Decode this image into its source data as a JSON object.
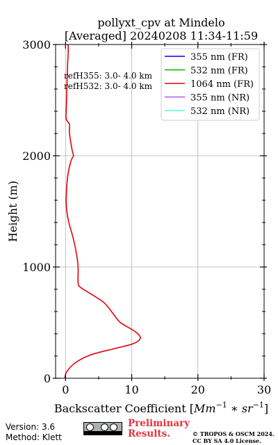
{
  "chart_data": {
    "type": "line",
    "title": "pollyxt_cpv at Mindelo",
    "subtitle": "[Averaged] 20240208 11:34-11:59",
    "xlabel_text": "Backscatter Coefficient [",
    "xlabel_math": "Mm",
    "xlabel_exp1": "−1",
    "xlabel_mid": " ∗ ",
    "xlabel_math2": "sr",
    "xlabel_exp2": "−1",
    "xlabel_close": "]",
    "ylabel": "Height (m)",
    "xlim": [
      -1.5,
      30
    ],
    "ylim": [
      0,
      3000
    ],
    "xticks": [
      "0",
      "10",
      "20",
      "30"
    ],
    "yticks": [
      "0",
      "1000",
      "2000",
      "3000"
    ],
    "xtick_values": [
      0,
      10,
      20,
      30
    ],
    "ytick_values": [
      0,
      1000,
      2000,
      3000
    ],
    "grid": true,
    "legend_position": "top-right",
    "series": [
      {
        "name": "355 nm (FR)",
        "color": "#0000ff",
        "x": [],
        "y": []
      },
      {
        "name": "532 nm (FR)",
        "color": "#00b400",
        "x": [],
        "y": []
      },
      {
        "name": "1064 nm (FR)",
        "color": "#e3000f",
        "x": [
          -0.1,
          0.2,
          1.5,
          3.8,
          7.3,
          10.2,
          11.3,
          10.5,
          8.3,
          7.2,
          5.8,
          3.5,
          2.2,
          1.9,
          1.9,
          1.7,
          1.2,
          0.5,
          0.2,
          0.1,
          0.3,
          0.8,
          1.2,
          1.0,
          0.6,
          0.6,
          0.1,
          0.1,
          0.2,
          0.3,
          0.4,
          0.4
        ],
        "y": [
          0,
          60,
          140,
          210,
          265,
          310,
          360,
          420,
          500,
          580,
          680,
          770,
          820,
          860,
          1000,
          1100,
          1250,
          1400,
          1500,
          1600,
          1800,
          1950,
          2000,
          2050,
          2200,
          2280,
          2330,
          2400,
          2600,
          2800,
          2920,
          3000
        ]
      },
      {
        "name": "355 nm (NR)",
        "color": "#b352e6",
        "x": [],
        "y": []
      },
      {
        "name": "532 nm (NR)",
        "color": "#5ef3d2",
        "x": [],
        "y": []
      }
    ],
    "annotations": [
      "refH355:  3.0- 4.0 km",
      "refH532:  3.0- 4.0 km"
    ]
  },
  "footer": {
    "version": "Version: 3.6",
    "method": "Method: Klett",
    "preliminary_line1": "Preliminary",
    "preliminary_line2": "Results.",
    "copyright_line1": "© TROPOS & OSCM 2024.",
    "copyright_line2": "CC BY SA 4.0 License."
  }
}
